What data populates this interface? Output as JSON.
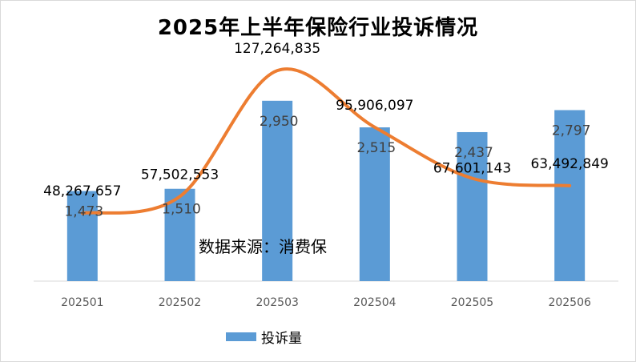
{
  "title": "2025年上半年保险行业投诉情况",
  "source_note": "数据来源：消费保",
  "legend": {
    "bar_series": "投诉量"
  },
  "colors": {
    "bar": "#5b9bd5",
    "line": "#ed7d31",
    "axis": "#d9d9d9",
    "text": "#000000",
    "tick": "#595959"
  },
  "chart_data": {
    "type": "bar",
    "categories": [
      "202501",
      "202502",
      "202503",
      "202504",
      "202505",
      "202506"
    ],
    "series": [
      {
        "name": "投诉量",
        "type": "bar",
        "values": [
          1473,
          1510,
          2950,
          2515,
          2437,
          2797
        ],
        "labels": [
          "1,473",
          "1,510",
          "2,950",
          "2,515",
          "2,437",
          "2,797"
        ]
      },
      {
        "type": "line",
        "smooth": true,
        "values": [
          48267657,
          57502553,
          127264835,
          95906097,
          67601143,
          63492849
        ],
        "labels": [
          "48,267,657",
          "57,502,553",
          "127,264,835",
          "95,906,097",
          "67,601,143",
          "63,492,849"
        ]
      }
    ],
    "grid": false,
    "legend_position": "bottom",
    "title": "2025年上半年保险行业投诉情况"
  }
}
